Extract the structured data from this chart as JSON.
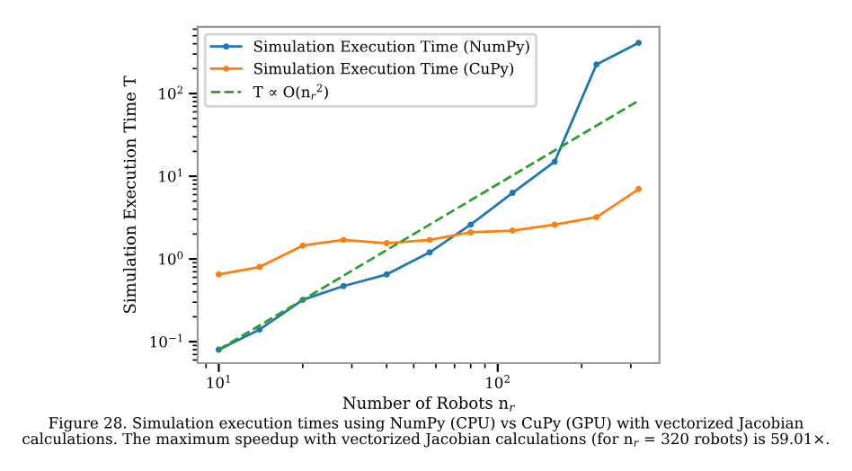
{
  "chart_data": {
    "type": "line",
    "xlabel": "Number of Robots n$_{r}$",
    "ylabel": "Simulation Execution Time T",
    "log": "xy",
    "grid": false,
    "legend": "top left",
    "marker": "circle",
    "xlim": [
      8.4,
      380
    ],
    "ylim": [
      0.055,
      640
    ],
    "xticks": [
      {
        "value": 10,
        "label": "10$^{1}$"
      },
      {
        "value": 100,
        "label": "10$^{2}$"
      }
    ],
    "yticks": [
      {
        "value": 0.1,
        "label": "10$^{−1}$"
      },
      {
        "value": 1,
        "label": "10$^{0}$"
      },
      {
        "value": 10,
        "label": "10$^{1}$"
      },
      {
        "value": 100,
        "label": "10$^{2}$"
      }
    ],
    "x": [
      10,
      14,
      20,
      28,
      40,
      57,
      80,
      113,
      160,
      226,
      320
    ],
    "series": [
      {
        "name": "Simulation Execution Time (NumPy)",
        "color": "#1f77b4",
        "values": [
          0.08,
          0.14,
          0.32,
          0.47,
          0.65,
          1.2,
          2.6,
          6.3,
          15,
          225,
          410
        ]
      },
      {
        "name": "Simulation Execution Time (CuPy)",
        "color": "#ff7f0e",
        "values": [
          0.65,
          0.8,
          1.45,
          1.7,
          1.55,
          1.7,
          2.1,
          2.2,
          2.6,
          3.2,
          7.0
        ]
      },
      {
        "name": "T ∝ O(n$_{r}$$^{2}$)",
        "color": "#2ca02c",
        "x": [
          10,
          320
        ],
        "values": [
          0.08,
          82
        ],
        "marker": "none",
        "line_style": "dashed"
      }
    ],
    "annotations": [
      "Figure 28. Simulation execution times using NumPy (CPU) vs CuPy (GPU) with vectorized Jacobian calculations. The maximum speedup with vectorized Jacobian calculations (for n$_{r}$ = 320 robots) is 59.01×."
    ]
  }
}
